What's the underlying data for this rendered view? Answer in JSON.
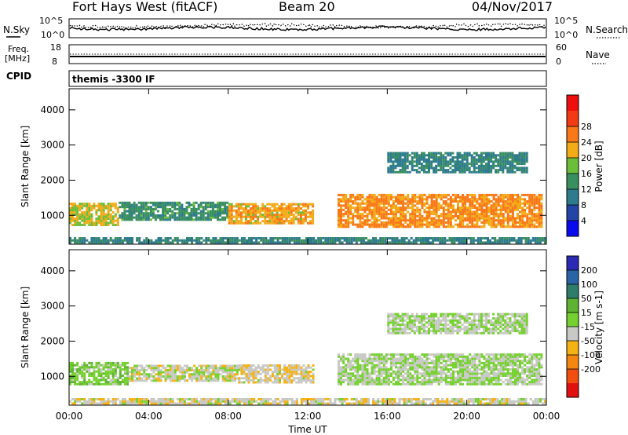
{
  "header": {
    "title": "Fort Hays West (fitACF)",
    "beam": "Beam 20",
    "date": "04/Nov/2017"
  },
  "param_panels": {
    "nsky_label": "N.Sky",
    "nsearch_label": "N.Search",
    "freq_label_top": "Freq.",
    "freq_label_unit": "[MHz]",
    "nave_label": "Nave",
    "cpid_label": "CPID",
    "cpid_value": "themis -3300 IF",
    "noise_ticks": [
      "10^5",
      "10^0"
    ],
    "freq_ticks": [
      "18",
      "8"
    ],
    "nave_ticks": [
      "60",
      "0"
    ]
  },
  "colors": {
    "power": [
      "#0a0aee",
      "#2346a6",
      "#2e7b8e",
      "#3a8f60",
      "#6cbd3a",
      "#f3ab18",
      "#f97818",
      "#f23a14",
      "#ed0e0e"
    ],
    "velocity": [
      "#2a2ab5",
      "#2a64a5",
      "#2d7d6a",
      "#5fb233",
      "#75d12f",
      "#c8c8c4",
      "#f5b215",
      "#f5860f",
      "#f04f10",
      "#e01010"
    ]
  },
  "chart_data": [
    {
      "type": "heatmap",
      "name": "power",
      "xlabel": "",
      "ylabel": "Slant Range [km]",
      "xlim": [
        0,
        24
      ],
      "ylim": [
        180,
        4600
      ],
      "yticks": [
        "1000",
        "2000",
        "3000",
        "4000"
      ],
      "colorbar": {
        "label": "Power [dB]",
        "ticks": [
          "4",
          "8",
          "12",
          "16",
          "20",
          "24",
          "28"
        ],
        "range": [
          0,
          32
        ]
      },
      "bands": [
        {
          "t0": 0.0,
          "t1": 2.5,
          "r0": 700,
          "r1": 1350,
          "value": 18
        },
        {
          "t0": 2.5,
          "t1": 8.0,
          "r0": 850,
          "r1": 1350,
          "value": 12
        },
        {
          "t0": 8.0,
          "t1": 12.3,
          "r0": 750,
          "r1": 1300,
          "value": 20
        },
        {
          "t0": 13.5,
          "t1": 23.8,
          "r0": 650,
          "r1": 1600,
          "value": 22
        },
        {
          "t0": 16.0,
          "t1": 23.0,
          "r0": 2200,
          "r1": 2800,
          "value": 10
        },
        {
          "t0": 0.0,
          "t1": 24.0,
          "r0": 200,
          "r1": 330,
          "value": 10
        }
      ]
    },
    {
      "type": "heatmap",
      "name": "velocity",
      "xlabel": "Time UT",
      "ylabel": "Slant Range [km]",
      "xlim": [
        0,
        24
      ],
      "ylim": [
        180,
        4600
      ],
      "xticks": [
        "00:00",
        "04:00",
        "08:00",
        "12:00",
        "16:00",
        "20:00",
        "00:00"
      ],
      "yticks": [
        "1000",
        "2000",
        "3000",
        "4000"
      ],
      "colorbar": {
        "label": "Velocity [m s-1]",
        "ticks": [
          "200",
          "100",
          "50",
          "15",
          "-15",
          "-50",
          "-100",
          "-200"
        ],
        "range": [
          -250,
          250
        ]
      },
      "bands": [
        {
          "t0": 0.0,
          "t1": 3.0,
          "r0": 750,
          "r1": 1400,
          "value": 30
        },
        {
          "t0": 3.0,
          "t1": 8.5,
          "r0": 850,
          "r1": 1300,
          "value": -20
        },
        {
          "t0": 8.5,
          "t1": 12.3,
          "r0": 800,
          "r1": 1300,
          "value": -40
        },
        {
          "t0": 13.5,
          "t1": 23.8,
          "r0": 750,
          "r1": 1600,
          "value": 0
        },
        {
          "t0": 16.0,
          "t1": 23.0,
          "r0": 2200,
          "r1": 2800,
          "value": 0
        },
        {
          "t0": 0.0,
          "t1": 24.0,
          "r0": 200,
          "r1": 330,
          "value": -30
        }
      ]
    }
  ]
}
